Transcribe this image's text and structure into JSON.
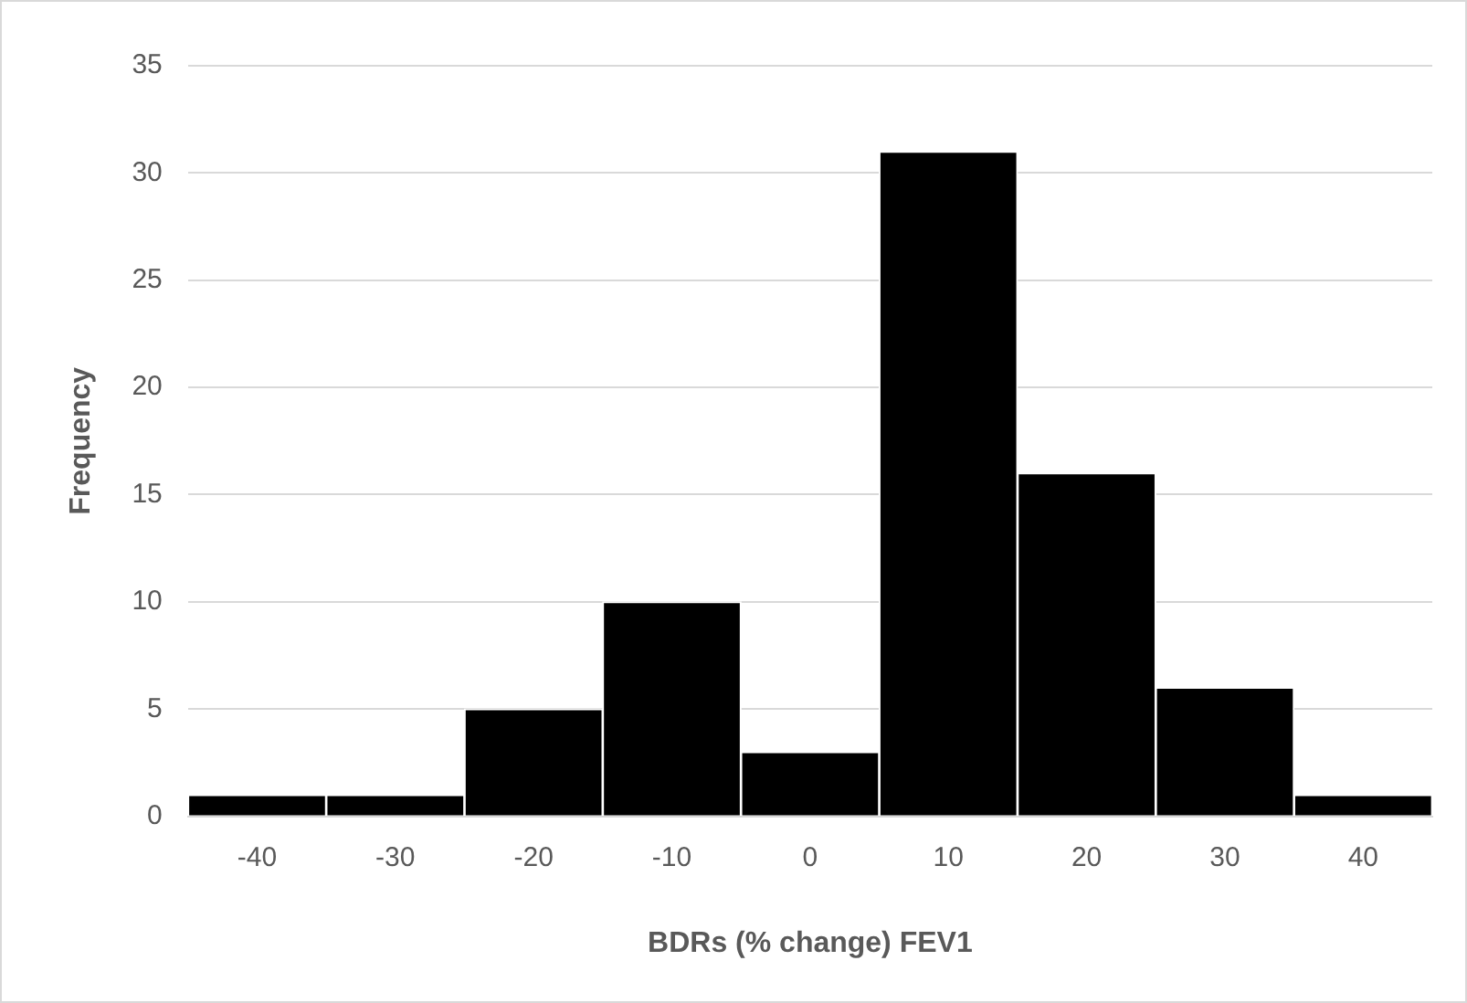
{
  "chart_data": {
    "type": "bar",
    "xlabel": "BDRs (% change) FEV1",
    "ylabel": "Frequency",
    "categories": [
      "-40",
      "-30",
      "-20",
      "-10",
      "0",
      "10",
      "20",
      "30",
      "40"
    ],
    "values": [
      1,
      1,
      5,
      10,
      3,
      31,
      16,
      6,
      1
    ],
    "color": "#000000",
    "ylim": [
      0,
      35
    ],
    "yticks": [
      0,
      5,
      10,
      15,
      20,
      25,
      30,
      35
    ],
    "grid": "y",
    "legend": false
  }
}
